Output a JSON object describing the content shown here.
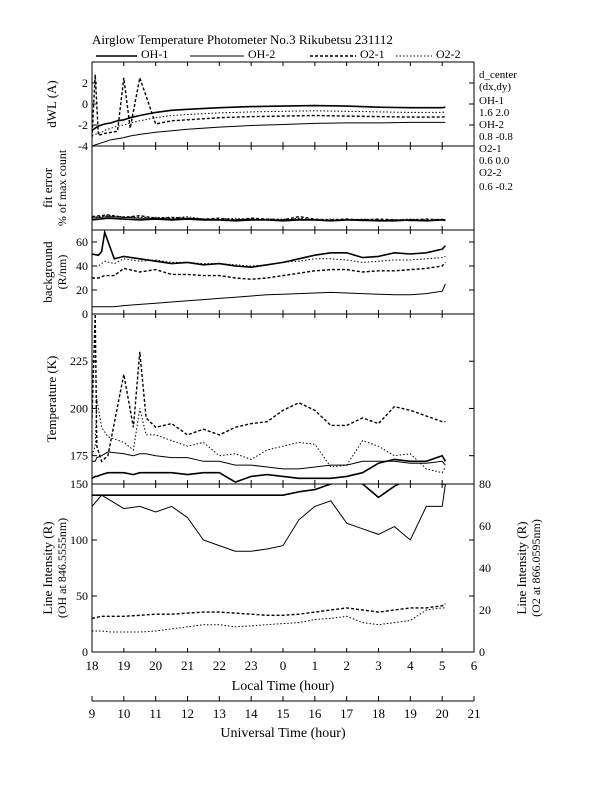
{
  "title": "Airglow Temperature Photometer No.3  Rikubetsu    231112",
  "legend": [
    {
      "name": "OH-1",
      "style": "solid"
    },
    {
      "name": "OH-2",
      "style": "thin"
    },
    {
      "name": "O2-1",
      "style": "dash"
    },
    {
      "name": "O2-2",
      "style": "dot"
    }
  ],
  "side_info": {
    "header1": "d_center",
    "header2": "(dx,dy)",
    "entries": [
      {
        "name": "OH-1",
        "value": "1.6   2.0"
      },
      {
        "name": "OH-2",
        "value": "0.8   -0.8"
      },
      {
        "name": "O2-1",
        "value": "0.6   0.0"
      },
      {
        "name": "O2-2",
        "value": "0.6   -0.2"
      }
    ]
  },
  "x_axes": {
    "local": {
      "label": "Local Time (hour)",
      "ticks": [
        "18",
        "19",
        "20",
        "21",
        "22",
        "23",
        "0",
        "1",
        "2",
        "3",
        "4",
        "5",
        "6"
      ]
    },
    "ut": {
      "label": "Universal Time (hour)",
      "ticks": [
        "9",
        "10",
        "11",
        "12",
        "13",
        "14",
        "15",
        "16",
        "17",
        "18",
        "19",
        "20",
        "21"
      ]
    }
  },
  "chart_data": [
    {
      "type": "line",
      "ylabel": "dWL (A)",
      "ylim": [
        -4,
        4
      ],
      "y_ticks": [
        2,
        0,
        -2,
        -4
      ],
      "x": [
        18,
        18.1,
        18.2,
        18.3,
        18.4,
        18.6,
        18.8,
        19,
        19.2,
        19.5,
        20,
        20.5,
        21,
        22,
        23,
        24,
        25,
        26,
        27,
        28,
        29,
        29.1
      ],
      "series": [
        {
          "name": "OH-1",
          "values": [
            -2.5,
            -2.3,
            -2.1,
            -2.0,
            -1.9,
            -1.8,
            -1.6,
            -1.5,
            -1.3,
            -1.1,
            -0.8,
            -0.6,
            -0.5,
            -0.35,
            -0.25,
            -0.2,
            -0.15,
            -0.2,
            -0.3,
            -0.35,
            -0.35,
            -0.3
          ]
        },
        {
          "name": "OH-2",
          "values": [
            -4.0,
            -3.9,
            -3.8,
            -3.7,
            -3.6,
            -3.4,
            -3.3,
            -3.2,
            -3.05,
            -2.9,
            -2.7,
            -2.55,
            -2.4,
            -2.2,
            -2.05,
            -1.95,
            -1.85,
            -1.8,
            -1.8,
            -1.75,
            -1.75,
            -1.75
          ]
        },
        {
          "name": "O2-1",
          "values": [
            -3.2,
            2.8,
            -3.0,
            -2.9,
            -2.8,
            -2.7,
            -2.6,
            2.5,
            -2.3,
            2.5,
            -1.9,
            -1.6,
            -1.5,
            -1.3,
            -1.2,
            -1.15,
            -1.1,
            -1.15,
            -1.2,
            -1.25,
            -1.25,
            -1.2
          ]
        },
        {
          "name": "O2-2",
          "values": [
            -3.0,
            -2.9,
            -2.8,
            -2.7,
            -2.5,
            -2.3,
            -2.1,
            -2.0,
            -1.8,
            -1.6,
            -1.3,
            -1.1,
            -1.0,
            -0.85,
            -0.75,
            -0.7,
            -0.65,
            -0.7,
            -0.75,
            -0.8,
            -0.8,
            -0.75
          ]
        }
      ]
    },
    {
      "type": "line",
      "ylabel": "fit error",
      "ylabel2": "% of max count",
      "ylim": [
        0,
        1
      ],
      "y_ticks": [],
      "x": [
        18,
        18.5,
        19,
        19.5,
        20,
        20.5,
        21,
        21.5,
        22,
        22.5,
        23,
        23.5,
        24,
        24.5,
        25,
        25.5,
        26,
        26.5,
        27,
        27.5,
        28,
        28.5,
        29,
        29.1
      ],
      "series": [
        {
          "name": "OH-1",
          "values": [
            0.12,
            0.14,
            0.13,
            0.12,
            0.13,
            0.12,
            0.13,
            0.12,
            0.12,
            0.11,
            0.12,
            0.12,
            0.11,
            0.12,
            0.12,
            0.11,
            0.12,
            0.12,
            0.11,
            0.11,
            0.12,
            0.11,
            0.12,
            0.12
          ]
        },
        {
          "name": "OH-2",
          "values": [
            0.14,
            0.16,
            0.15,
            0.14,
            0.14,
            0.13,
            0.14,
            0.13,
            0.12,
            0.12,
            0.13,
            0.12,
            0.12,
            0.13,
            0.12,
            0.11,
            0.12,
            0.11,
            0.11,
            0.12,
            0.11,
            0.11,
            0.12,
            0.11
          ]
        },
        {
          "name": "O2-1",
          "values": [
            0.16,
            0.18,
            0.15,
            0.17,
            0.14,
            0.15,
            0.14,
            0.13,
            0.14,
            0.12,
            0.14,
            0.13,
            0.12,
            0.16,
            0.13,
            0.12,
            0.13,
            0.12,
            0.13,
            0.12,
            0.12,
            0.13,
            0.12,
            0.12
          ]
        },
        {
          "name": "O2-2",
          "values": [
            0.15,
            0.17,
            0.16,
            0.15,
            0.15,
            0.14,
            0.16,
            0.13,
            0.13,
            0.14,
            0.12,
            0.13,
            0.13,
            0.14,
            0.12,
            0.13,
            0.12,
            0.13,
            0.12,
            0.12,
            0.13,
            0.12,
            0.13,
            0.12
          ]
        }
      ]
    },
    {
      "type": "line",
      "ylabel": "background",
      "ylabel2": "(R/nm)",
      "ylim": [
        0,
        70
      ],
      "y_ticks": [
        60,
        40,
        20,
        0
      ],
      "x": [
        18,
        18.2,
        18.3,
        18.4,
        18.7,
        19,
        19.5,
        20,
        20.5,
        21,
        21.5,
        22,
        22.5,
        23,
        23.5,
        24,
        24.5,
        25,
        25.5,
        26,
        26.5,
        27,
        27.5,
        28,
        28.5,
        29,
        29.1
      ],
      "series": [
        {
          "name": "OH-1",
          "values": [
            50,
            49,
            52,
            68,
            46,
            48,
            46,
            44,
            42,
            43,
            41,
            42,
            40,
            39,
            41,
            43,
            46,
            49,
            51,
            51,
            47,
            48,
            51,
            50,
            51,
            54,
            57
          ]
        },
        {
          "name": "OH-2",
          "values": [
            6,
            6,
            6,
            6,
            6,
            7,
            8,
            9,
            10,
            11,
            12,
            13,
            14,
            15,
            16,
            16.5,
            17,
            17.5,
            18,
            17.5,
            17,
            16.5,
            16,
            16,
            17,
            19,
            25
          ]
        },
        {
          "name": "O2-1",
          "values": [
            30,
            30,
            31,
            32,
            32,
            38,
            35,
            37,
            33,
            33,
            32,
            32,
            30,
            29,
            30,
            32,
            34,
            36,
            37,
            37,
            35,
            36,
            36,
            37,
            38,
            40,
            43
          ]
        },
        {
          "name": "O2-2",
          "values": [
            40,
            40,
            42,
            44,
            42,
            46,
            44,
            45,
            43,
            43,
            42,
            42,
            41,
            40,
            41,
            43,
            44,
            46,
            46,
            45,
            43,
            44,
            45,
            45,
            46,
            47,
            48
          ]
        }
      ]
    },
    {
      "type": "line",
      "ylabel": "Temperature (K)",
      "ylim": [
        160,
        250
      ],
      "y_ticks": [
        225,
        200,
        175
      ],
      "x": [
        18,
        18.1,
        18.15,
        18.3,
        18.5,
        19,
        19.3,
        19.5,
        19.7,
        20,
        20.5,
        21,
        21.5,
        22,
        22.5,
        23,
        23.5,
        24,
        24.5,
        25,
        25.5,
        26,
        26.5,
        27,
        27.5,
        28,
        28.5,
        29,
        29.1
      ],
      "series": [
        {
          "name": "OH-1",
          "values": [
            163,
            164,
            164,
            165,
            166,
            166,
            165,
            166,
            166,
            166,
            166,
            165,
            166,
            166,
            161,
            164,
            165,
            164,
            163,
            163,
            163,
            164,
            166,
            171,
            173,
            172,
            172,
            175,
            172
          ]
        },
        {
          "name": "OH-2",
          "values": [
            172,
            172,
            174,
            175,
            177,
            176,
            175,
            176,
            176,
            175,
            174,
            174,
            172,
            172,
            170,
            170,
            169,
            168,
            168,
            169,
            170,
            170,
            172,
            172,
            172,
            171,
            171,
            172,
            170
          ]
        },
        {
          "name": "O2-1",
          "values": [
            195,
            250,
            180,
            172,
            175,
            218,
            190,
            230,
            195,
            190,
            192,
            186,
            189,
            186,
            190,
            192,
            193,
            199,
            203,
            199,
            191,
            191,
            195,
            192,
            201,
            199,
            196,
            193,
            193
          ]
        },
        {
          "name": "O2-2",
          "values": [
            175,
            180,
            205,
            190,
            185,
            182,
            178,
            200,
            186,
            186,
            183,
            180,
            182,
            175,
            176,
            173,
            178,
            180,
            182,
            181,
            169,
            170,
            183,
            180,
            175,
            176,
            168,
            166,
            169
          ]
        }
      ]
    },
    {
      "type": "line",
      "ylabel": "Line Intensity (R)",
      "ylabel2": "(OH at 846.5555nm)",
      "ylabel_right": "Line Intensity (R)",
      "ylabel_right2": "(O2 at 866.0595nm)",
      "ylim": [
        0,
        150
      ],
      "ylim_right": [
        0,
        80
      ],
      "y_ticks": [
        150,
        100,
        50,
        0
      ],
      "y_ticks_right": [
        80,
        60,
        40,
        20,
        0
      ],
      "x": [
        18,
        18.3,
        18.6,
        19,
        19.5,
        20,
        20.5,
        21,
        21.5,
        22,
        22.5,
        23,
        23.5,
        24,
        24.5,
        25,
        25.5,
        26,
        26.5,
        27,
        27.5,
        28,
        28.5,
        29,
        29.1
      ],
      "series": [
        {
          "name": "OH-1",
          "values": [
            140,
            140,
            140,
            140,
            140,
            140,
            140,
            140,
            140,
            140,
            140,
            140,
            140,
            140,
            143,
            145,
            150,
            155,
            150,
            138,
            148,
            155,
            152,
            150,
            150
          ]
        },
        {
          "name": "OH-2",
          "values": [
            130,
            140,
            135,
            128,
            130,
            125,
            130,
            120,
            100,
            95,
            90,
            90,
            92,
            95,
            118,
            130,
            135,
            115,
            110,
            105,
            112,
            100,
            130,
            130,
            150
          ]
        },
        {
          "name": "O2-1",
          "values": [
            16,
            17,
            17,
            17,
            17.5,
            18,
            18,
            18.5,
            19,
            19,
            18.5,
            18,
            17.5,
            17.5,
            18,
            19,
            20,
            21,
            20,
            19,
            20,
            21,
            21,
            22,
            23
          ]
        },
        {
          "name": "O2-2",
          "values": [
            10,
            10,
            9.5,
            9.5,
            9.5,
            10,
            11,
            12,
            13,
            13,
            12,
            12.5,
            13,
            13.5,
            14,
            15.5,
            16,
            17,
            14,
            13,
            14,
            15,
            20,
            21,
            21
          ]
        }
      ]
    }
  ]
}
